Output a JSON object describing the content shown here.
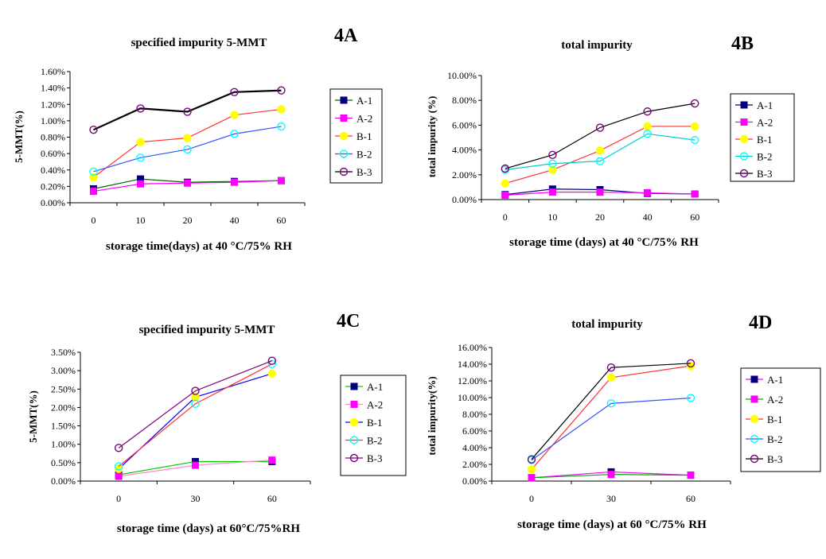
{
  "chart_data": [
    {
      "panel": "4A",
      "type": "line",
      "title": "specified impurity 5-MMT",
      "xlabel": "storage time(days) at 40 °C/75% RH",
      "ylabel": "5-MMT(%)",
      "categories": [
        "0",
        "10",
        "20",
        "40",
        "60"
      ],
      "yticks": [
        "0.00%",
        "0.20%",
        "0.40%",
        "0.60%",
        "0.80%",
        "1.00%",
        "1.20%",
        "1.40%",
        "1.60%"
      ],
      "ylim": [
        0,
        1.6
      ],
      "grid": false,
      "legend": "right",
      "series": [
        {
          "name": "A-1",
          "values": [
            0.17,
            0.29,
            0.25,
            0.26,
            0.27
          ],
          "line": "#006400",
          "marker": "square",
          "mfill": "#000080",
          "mstroke": "#000080"
        },
        {
          "name": "A-2",
          "values": [
            0.14,
            0.23,
            0.24,
            0.25,
            0.27
          ],
          "line": "#ff00ff",
          "marker": "square",
          "mfill": "#ff00ff",
          "mstroke": "#ff00ff"
        },
        {
          "name": "B-1",
          "values": [
            0.31,
            0.74,
            0.79,
            1.07,
            1.14
          ],
          "line": "#ff3333",
          "marker": "circle",
          "mfill": "#ffff00",
          "mstroke": "#ffff00"
        },
        {
          "name": "B-2",
          "values": [
            0.38,
            0.55,
            0.65,
            0.84,
            0.93
          ],
          "line": "#3355ff",
          "marker": "circle",
          "mfill": "none",
          "mstroke": "#00ffff"
        },
        {
          "name": "B-3",
          "values": [
            0.89,
            1.15,
            1.11,
            1.35,
            1.37
          ],
          "line": "#000000",
          "marker": "circle",
          "mfill": "none",
          "mstroke": "#800080",
          "lineWidth": 2.2
        }
      ]
    },
    {
      "panel": "4B",
      "type": "line",
      "title": "total impurity",
      "xlabel": "storage time (days) at 40 °C/75% RH",
      "ylabel": "total impurity (%)",
      "categories": [
        "0",
        "10",
        "20",
        "40",
        "60"
      ],
      "yticks": [
        "0.00%",
        "2.00%",
        "4.00%",
        "6.00%",
        "8.00%",
        "10.00%"
      ],
      "ylim": [
        0,
        10
      ],
      "grid": false,
      "legend": "right",
      "series": [
        {
          "name": "A-1",
          "values": [
            0.4,
            0.85,
            0.8,
            0.5,
            0.45
          ],
          "line": "#000080",
          "marker": "square",
          "mfill": "#000080",
          "mstroke": "#000080"
        },
        {
          "name": "A-2",
          "values": [
            0.35,
            0.6,
            0.6,
            0.55,
            0.45
          ],
          "line": "#ff00ff",
          "marker": "square",
          "mfill": "#ff00ff",
          "mstroke": "#ff00ff"
        },
        {
          "name": "B-1",
          "values": [
            1.3,
            2.4,
            3.95,
            5.9,
            5.9
          ],
          "line": "#ff3333",
          "marker": "circle",
          "mfill": "#ffff00",
          "mstroke": "#ffff00"
        },
        {
          "name": "B-2",
          "values": [
            2.4,
            2.9,
            3.1,
            5.3,
            4.8
          ],
          "line": "#00cccc",
          "marker": "circle",
          "mfill": "none",
          "mstroke": "#00ffff"
        },
        {
          "name": "B-3",
          "values": [
            2.5,
            3.6,
            5.8,
            7.1,
            7.75
          ],
          "line": "#000000",
          "marker": "circle",
          "mfill": "none",
          "mstroke": "#800080"
        }
      ]
    },
    {
      "panel": "4C",
      "type": "line",
      "title": "specified impurity 5-MMT",
      "xlabel": "storage time (days) at 60°C/75%RH",
      "ylabel": "5-MMT(%)",
      "categories": [
        "0",
        "30",
        "60"
      ],
      "yticks": [
        "0.00%",
        "0.50%",
        "1.00%",
        "1.50%",
        "2.00%",
        "2.50%",
        "3.00%",
        "3.50%"
      ],
      "ylim": [
        0,
        3.5
      ],
      "grid": false,
      "legend": "right",
      "series": [
        {
          "name": "A-1",
          "values": [
            0.17,
            0.53,
            0.53
          ],
          "line": "#00cc00",
          "marker": "square",
          "mfill": "#000080",
          "mstroke": "#000080"
        },
        {
          "name": "A-2",
          "values": [
            0.13,
            0.43,
            0.57
          ],
          "line": "#ff88cc",
          "marker": "square",
          "mfill": "#ff00ff",
          "mstroke": "#ff00ff"
        },
        {
          "name": "B-1",
          "values": [
            0.33,
            2.28,
            2.92
          ],
          "line": "#0000ff",
          "marker": "circle",
          "mfill": "#ffff00",
          "mstroke": "#ffff00"
        },
        {
          "name": "B-2",
          "values": [
            0.4,
            2.1,
            3.18
          ],
          "line": "#ff3333",
          "marker": "circle",
          "mfill": "none",
          "mstroke": "#00ffff"
        },
        {
          "name": "B-3",
          "values": [
            0.9,
            2.45,
            3.27
          ],
          "line": "#800080",
          "marker": "circle",
          "mfill": "none",
          "mstroke": "#800080"
        }
      ]
    },
    {
      "panel": "4D",
      "type": "line",
      "title": "total impurity",
      "xlabel": "storage time (days) at 60 °C/75% RH",
      "ylabel": "total impurity(%)",
      "categories": [
        "0",
        "30",
        "60"
      ],
      "yticks": [
        "0.00%",
        "2.00%",
        "4.00%",
        "6.00%",
        "8.00%",
        "10.00%",
        "12.00%",
        "14.00%",
        "16.00%"
      ],
      "ylim": [
        0,
        16
      ],
      "grid": false,
      "legend": "right",
      "series": [
        {
          "name": "A-1",
          "values": [
            0.4,
            1.1,
            0.7
          ],
          "line": "#ff00ff",
          "marker": "square",
          "mfill": "#000080",
          "mstroke": "#000080"
        },
        {
          "name": "A-2",
          "values": [
            0.4,
            0.8,
            0.7
          ],
          "line": "#00aa00",
          "marker": "square",
          "mfill": "#ff00ff",
          "mstroke": "#ff00ff"
        },
        {
          "name": "B-1",
          "values": [
            1.4,
            12.4,
            13.8
          ],
          "line": "#ff3333",
          "marker": "circle",
          "mfill": "#ffff00",
          "mstroke": "#ffff00"
        },
        {
          "name": "B-2",
          "values": [
            2.5,
            9.3,
            9.95
          ],
          "line": "#3355ff",
          "marker": "circle",
          "mfill": "none",
          "mstroke": "#00ffff"
        },
        {
          "name": "B-3",
          "values": [
            2.6,
            13.6,
            14.1
          ],
          "line": "#000000",
          "marker": "circle",
          "mfill": "none",
          "mstroke": "#800080"
        }
      ]
    }
  ]
}
